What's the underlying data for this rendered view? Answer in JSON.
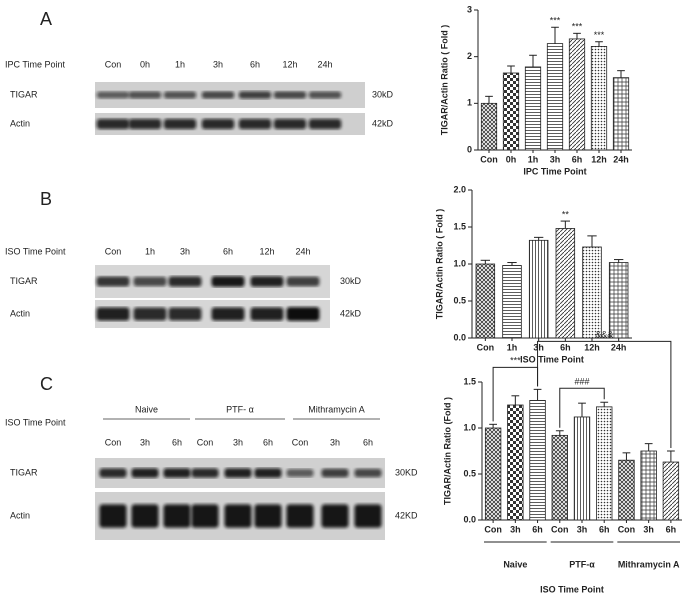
{
  "panels": [
    {
      "label": "A",
      "blot": {
        "axis_label": "IPC Time Point",
        "lanes": [
          "Con",
          "0h",
          "1h",
          "3h",
          "6h",
          "12h",
          "24h"
        ],
        "rows": [
          {
            "name": "TIGAR",
            "size": "30kD"
          },
          {
            "name": "Actin",
            "size": "42kD"
          }
        ]
      }
    },
    {
      "label": "B",
      "blot": {
        "axis_label": "ISO Time Point",
        "lanes": [
          "Con",
          "1h",
          "3h",
          "6h",
          "12h",
          "24h"
        ],
        "rows": [
          {
            "name": "TIGAR",
            "size": "30kD"
          },
          {
            "name": "Actin",
            "size": "42kD"
          }
        ]
      }
    },
    {
      "label": "C",
      "blot": {
        "axis_label": "ISO Time Point",
        "groups": [
          "Naive",
          "PTF- α",
          "Mithramycin A"
        ],
        "lanes": [
          "Con",
          "3h",
          "6h",
          "Con",
          "3h",
          "6h",
          "Con",
          "3h",
          "6h"
        ],
        "rows": [
          {
            "name": "TIGAR",
            "size": "30KD"
          },
          {
            "name": "Actin",
            "size": "42KD"
          }
        ]
      }
    }
  ],
  "chart_data": [
    {
      "type": "bar",
      "y_label": "TIGAR/Actin Ratio ( Fold )",
      "x_label": "IPC Time Point",
      "categories": [
        "Con",
        "0h",
        "1h",
        "3h",
        "6h",
        "12h",
        "24h"
      ],
      "values": [
        1.0,
        1.65,
        1.78,
        2.28,
        2.38,
        2.22,
        1.55
      ],
      "errors": [
        0.15,
        0.15,
        0.25,
        0.35,
        0.12,
        0.1,
        0.15
      ],
      "annotations": [
        null,
        null,
        null,
        "***",
        "***",
        "***",
        null
      ],
      "patterns": [
        "cross",
        "checker",
        "hlines",
        "hlines",
        "diag",
        "dots",
        "grid"
      ],
      "ylim": [
        0,
        3
      ],
      "yticks": [
        0,
        1,
        2,
        3
      ]
    },
    {
      "type": "bar",
      "y_label": "TIGAR/Actin Ratio ( Fold )",
      "x_label": "ISO Time Point",
      "categories": [
        "Con",
        "1h",
        "3h",
        "6h",
        "12h",
        "24h"
      ],
      "values": [
        1.0,
        0.98,
        1.32,
        1.48,
        1.23,
        1.02
      ],
      "errors": [
        0.05,
        0.04,
        0.04,
        0.1,
        0.15,
        0.04
      ],
      "annotations": [
        null,
        null,
        null,
        "**",
        null,
        null
      ],
      "patterns": [
        "cross",
        "hlines",
        "vlines",
        "diag",
        "dots",
        "grid"
      ],
      "ylim": [
        0,
        2
      ],
      "yticks": [
        {
          "value": 0,
          "label": "0.0"
        },
        0.5,
        {
          "value": 1,
          "label": "1.0"
        },
        1.5,
        {
          "value": 2,
          "label": "2.0"
        }
      ]
    },
    {
      "type": "bar",
      "y_label": "TIGAR/Actin Ratio (Fold )",
      "x_label": "ISO Time Point",
      "categories": [
        "Con",
        "3h",
        "6h",
        "Con",
        "3h",
        "6h",
        "Con",
        "3h",
        "6h"
      ],
      "groups": [
        "Naive",
        "PTF-α",
        "Mithramycin A"
      ],
      "values": [
        1.0,
        1.25,
        1.3,
        0.92,
        1.12,
        1.23,
        0.65,
        0.75,
        0.63
      ],
      "errors": [
        0.04,
        0.1,
        0.12,
        0.05,
        0.15,
        0.05,
        0.08,
        0.08,
        0.12
      ],
      "brackets": [
        "***",
        "###",
        "&&&"
      ],
      "patterns": [
        "cross",
        "checker",
        "hlines",
        "cross",
        "vlines",
        "dots",
        "cross",
        "grid",
        "diag"
      ],
      "ylim": [
        0,
        1.5
      ],
      "yticks": [
        {
          "value": 0,
          "label": "0.0"
        },
        0.5,
        {
          "value": 1,
          "label": "1.0"
        },
        1.5
      ]
    }
  ]
}
